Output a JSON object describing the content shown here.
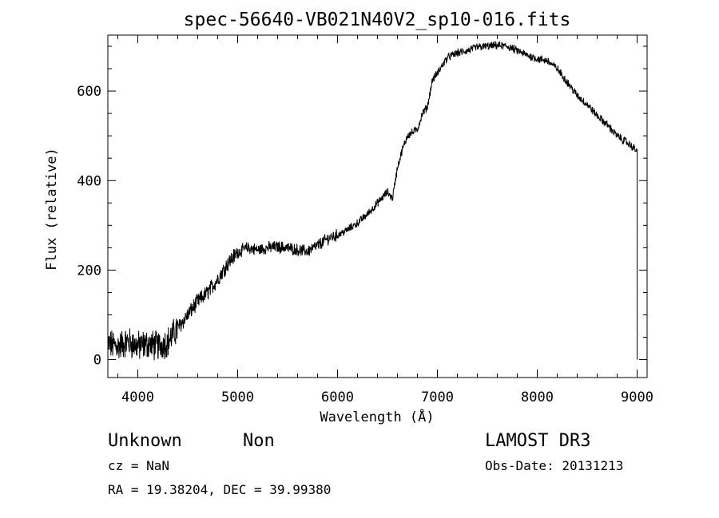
{
  "chart_data": {
    "type": "line",
    "title": "spec-56640-VB021N40V2_sp10-016.fits",
    "xlabel": "Wavelength (Å)",
    "ylabel": "Flux (relative)",
    "xlim": [
      3700,
      9100
    ],
    "ylim": [
      -40,
      725
    ],
    "xticks": [
      4000,
      5000,
      6000,
      7000,
      8000,
      9000
    ],
    "yticks": [
      0,
      200,
      400,
      600
    ],
    "x_minor_step": 200,
    "y_minor_step": 50,
    "grid": false,
    "series": [
      {
        "name": "spectrum",
        "anchors": [
          [
            3700,
            35
          ],
          [
            3800,
            30
          ],
          [
            3900,
            40
          ],
          [
            4000,
            30
          ],
          [
            4100,
            35
          ],
          [
            4200,
            30
          ],
          [
            4300,
            40
          ],
          [
            4400,
            70
          ],
          [
            4500,
            100
          ],
          [
            4600,
            130
          ],
          [
            4700,
            150
          ],
          [
            4800,
            180
          ],
          [
            4900,
            215
          ],
          [
            5000,
            240
          ],
          [
            5100,
            250
          ],
          [
            5200,
            245
          ],
          [
            5300,
            250
          ],
          [
            5400,
            252
          ],
          [
            5500,
            250
          ],
          [
            5600,
            245
          ],
          [
            5700,
            242
          ],
          [
            5800,
            255
          ],
          [
            5900,
            270
          ],
          [
            6000,
            278
          ],
          [
            6100,
            290
          ],
          [
            6200,
            305
          ],
          [
            6300,
            325
          ],
          [
            6400,
            350
          ],
          [
            6500,
            375
          ],
          [
            6550,
            360
          ],
          [
            6600,
            430
          ],
          [
            6650,
            470
          ],
          [
            6700,
            500
          ],
          [
            6800,
            515
          ],
          [
            6850,
            550
          ],
          [
            6900,
            565
          ],
          [
            6950,
            625
          ],
          [
            7000,
            640
          ],
          [
            7100,
            675
          ],
          [
            7200,
            685
          ],
          [
            7300,
            690
          ],
          [
            7400,
            698
          ],
          [
            7500,
            700
          ],
          [
            7600,
            702
          ],
          [
            7700,
            700
          ],
          [
            7800,
            690
          ],
          [
            7900,
            680
          ],
          [
            8000,
            672
          ],
          [
            8100,
            668
          ],
          [
            8200,
            650
          ],
          [
            8300,
            620
          ],
          [
            8400,
            590
          ],
          [
            8500,
            570
          ],
          [
            8600,
            545
          ],
          [
            8700,
            525
          ],
          [
            8800,
            500
          ],
          [
            8900,
            485
          ],
          [
            8980,
            470
          ],
          [
            9000,
            465
          ]
        ],
        "noise_by_region": [
          {
            "range": [
              3700,
              4400
            ],
            "amplitude": 30
          },
          {
            "range": [
              4400,
              5000
            ],
            "amplitude": 16
          },
          {
            "range": [
              5000,
              6000
            ],
            "amplitude": 12
          },
          {
            "range": [
              6000,
              9000
            ],
            "amplitude": 8
          }
        ],
        "terminal_drop": {
          "x": 9000,
          "values": [
            465,
            400,
            90,
            0
          ]
        }
      }
    ]
  },
  "footer": {
    "class_label": "Unknown",
    "subclass_label": "Non",
    "redshift": "cz = NaN",
    "coordinates": "RA =  19.38204, DEC =  39.99380",
    "survey": "LAMOST DR3",
    "obs_date": "Obs-Date: 20131213"
  }
}
